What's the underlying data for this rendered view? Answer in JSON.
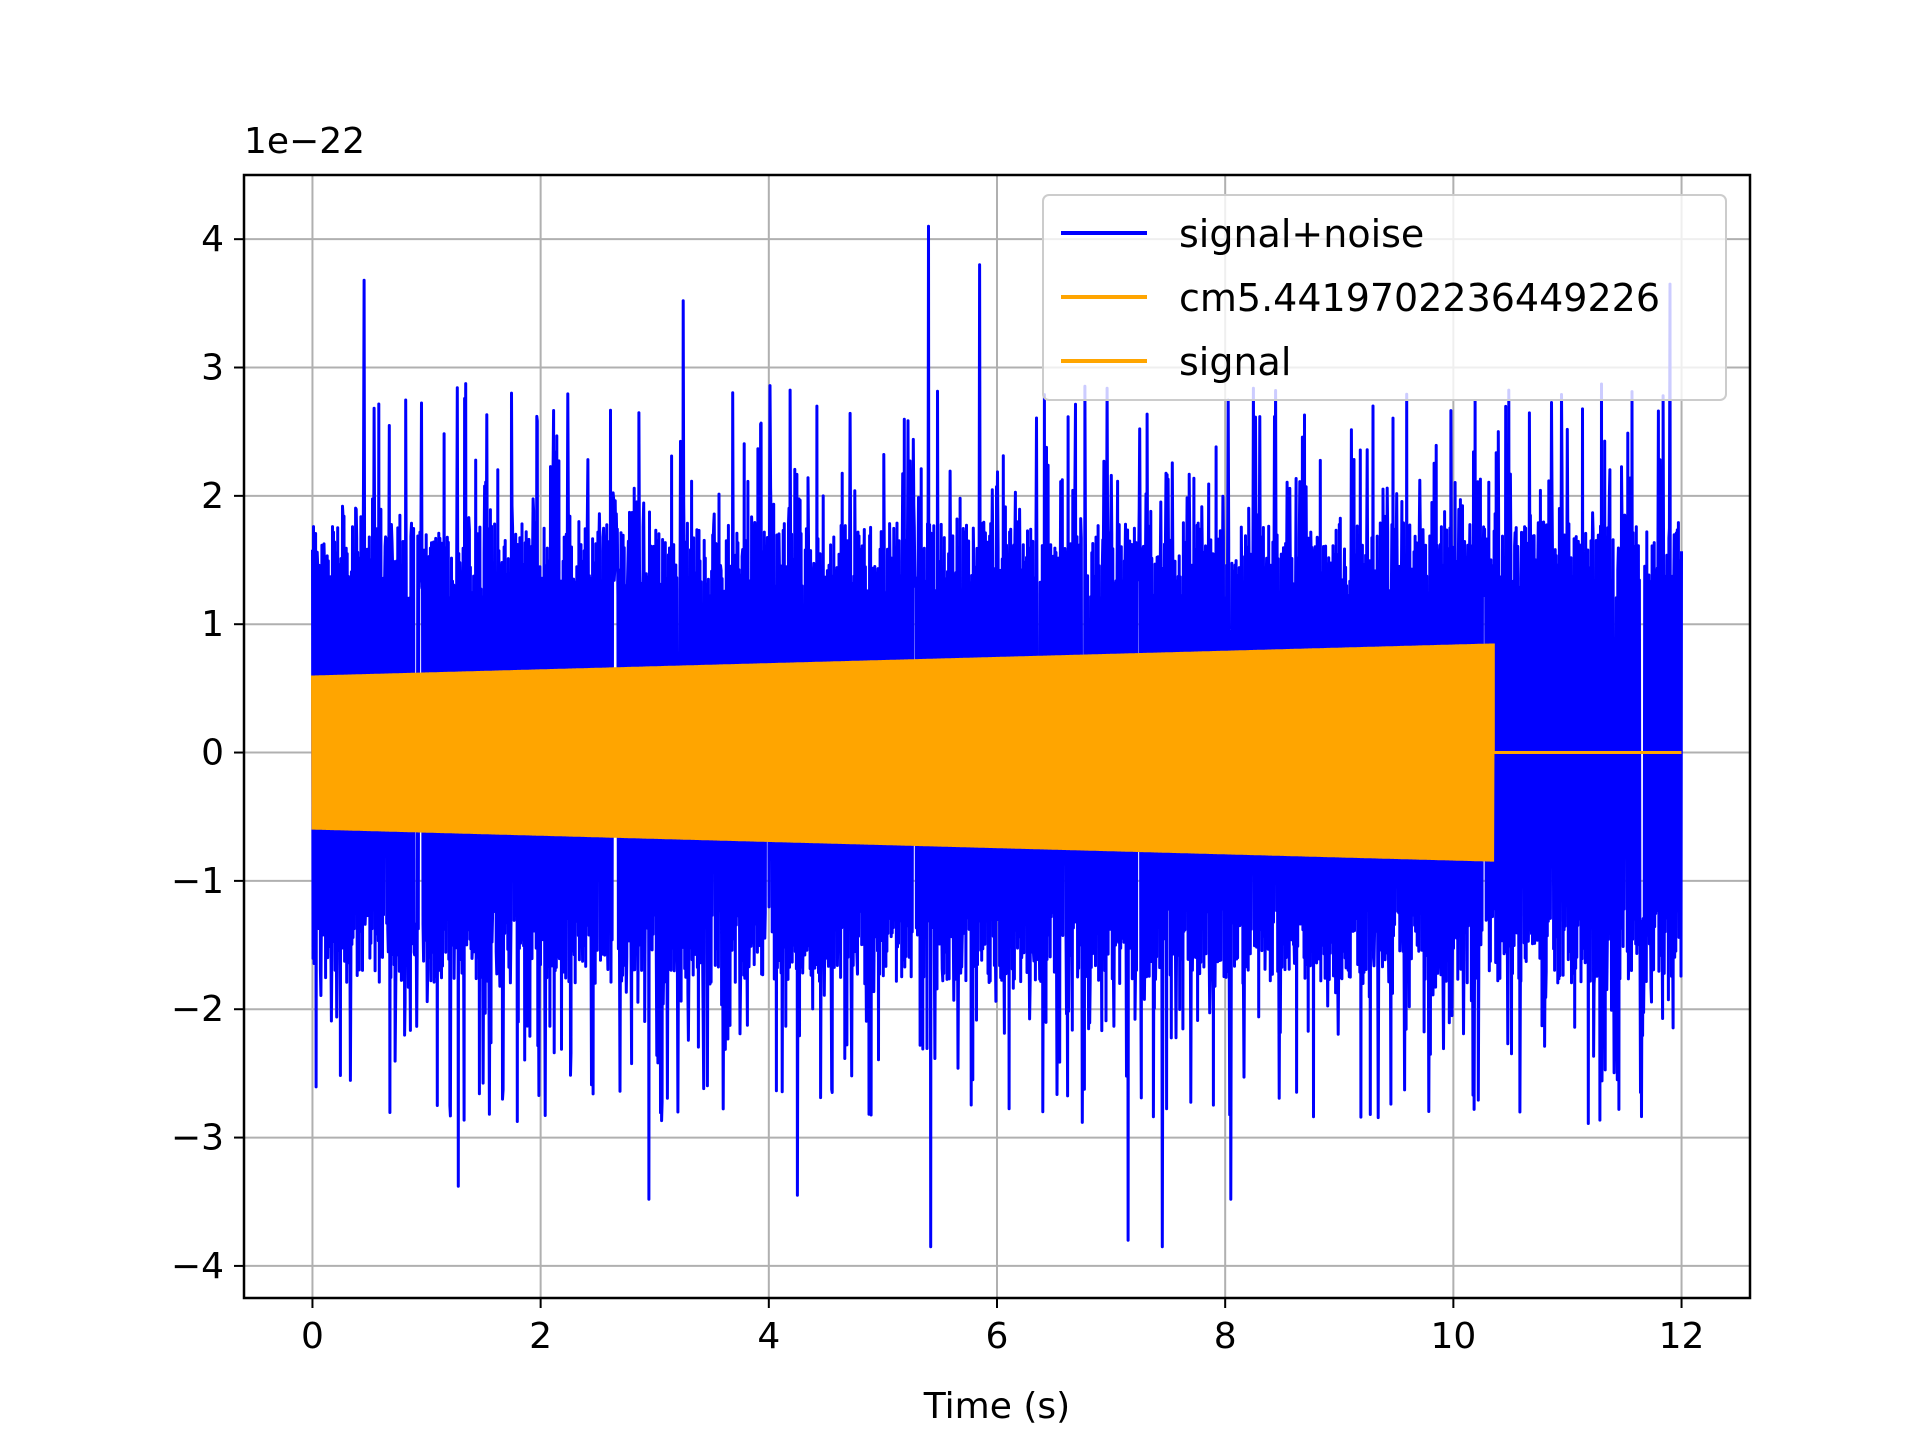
{
  "chart_data": {
    "type": "line",
    "title": "",
    "xlabel": "Time (s)",
    "ylabel": "",
    "y_offset_label": "1e−22",
    "xlim": [
      -0.6,
      12.6
    ],
    "ylim": [
      -4.25,
      4.5
    ],
    "xticks": [
      0,
      2,
      4,
      6,
      8,
      10,
      12
    ],
    "xtick_labels": [
      "0",
      "2",
      "4",
      "6",
      "8",
      "10",
      "12"
    ],
    "yticks": [
      -4,
      -3,
      -2,
      -1,
      0,
      1,
      2,
      3,
      4
    ],
    "ytick_labels": [
      "−4",
      "−3",
      "−2",
      "−1",
      "0",
      "1",
      "2",
      "3",
      "4"
    ],
    "grid": true,
    "legend_position": "top-right",
    "series": [
      {
        "name": "signal+noise",
        "color": "#0000ff",
        "description_values": {
          "x_range": [
            0,
            12
          ],
          "typical_envelope": [
            -2.3,
            2.3
          ],
          "peaks": [
            {
              "x": 0.45,
              "y": 3.68
            },
            {
              "x": 3.25,
              "y": 3.52
            },
            {
              "x": 5.4,
              "y": 4.1
            },
            {
              "x": 5.42,
              "y": -3.85
            },
            {
              "x": 7.15,
              "y": -3.8
            },
            {
              "x": 7.45,
              "y": -3.85
            },
            {
              "x": 1.28,
              "y": -3.38
            },
            {
              "x": 2.95,
              "y": -3.48
            },
            {
              "x": 4.25,
              "y": -3.45
            },
            {
              "x": 8.05,
              "y": -3.48
            },
            {
              "x": 11.9,
              "y": 3.65
            },
            {
              "x": 5.85,
              "y": 3.8
            }
          ]
        }
      },
      {
        "name": "cm5.4419702236449226",
        "color": "#ffa500",
        "description_values": {
          "x_range": [
            0,
            10.35
          ],
          "amplitude_start": 0.6,
          "amplitude_end": 0.85,
          "after_end_value": 0
        }
      },
      {
        "name": "signal",
        "color": "#ffa500",
        "description_values": {
          "x_range": [
            0,
            12
          ],
          "amplitude_start": 0.6,
          "amplitude_end": 0.85,
          "merger_time": 10.35,
          "after_end_value": 0
        }
      }
    ]
  }
}
